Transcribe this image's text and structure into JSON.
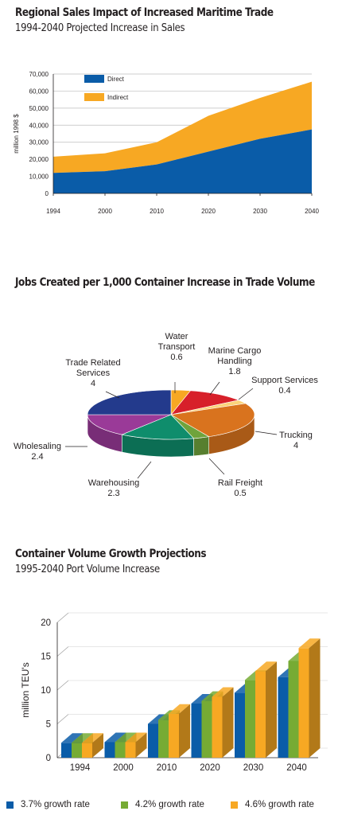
{
  "sections": [
    {
      "title": "Regional Sales Impact of Increased Maritime Trade",
      "subtitle": "1994-2040 Projected Increase in Sales"
    },
    {
      "title": "Jobs Created per 1,000 Container Increase in Trade Volume"
    },
    {
      "title": "Container Volume Growth Projections",
      "subtitle": "1995-2040 Port Volume Increase"
    }
  ],
  "chart_data": [
    {
      "type": "area",
      "stacked": true,
      "categories": [
        "1994",
        "2000",
        "2010",
        "2020",
        "2030",
        "2040"
      ],
      "series": [
        {
          "name": "Direct",
          "values": [
            12000,
            13000,
            17000,
            24500,
            32000,
            37500
          ],
          "color": "#0a5ca8"
        },
        {
          "name": "Indirect",
          "values": [
            9500,
            10500,
            13000,
            21000,
            24000,
            28000
          ],
          "color": "#f7a823"
        }
      ],
      "ylabel": "million 1998 $",
      "yticks": [
        "0",
        "10,000",
        "20,000",
        "30,000",
        "40,000",
        "50,000",
        "60,000",
        "70,000"
      ],
      "ylim": [
        0,
        70000
      ],
      "grid": true,
      "legend": "top-left"
    },
    {
      "type": "pie",
      "slices": [
        {
          "label": "Water Transport",
          "value": 0.6,
          "color": "#f7a823"
        },
        {
          "label": "Marine Cargo Handling",
          "value": 1.8,
          "color": "#d7202a"
        },
        {
          "label": "Support Services",
          "value": 0.4,
          "color": "#fbd37a"
        },
        {
          "label": "Trucking",
          "value": 4,
          "color": "#d9731e"
        },
        {
          "label": "Rail Freight",
          "value": 0.5,
          "color": "#6fa33c"
        },
        {
          "label": "Warehousing",
          "value": 2.3,
          "color": "#0f8d6c"
        },
        {
          "label": "Wholesaling",
          "value": 2.4,
          "color": "#9a3a98"
        },
        {
          "label": "Trade Related Services",
          "value": 4,
          "color": "#233a8c"
        }
      ]
    },
    {
      "type": "bar",
      "categories": [
        "1994",
        "2000",
        "2010",
        "2020",
        "2030",
        "2040"
      ],
      "series": [
        {
          "name": "3.7% growth rate",
          "values": [
            2.2,
            2.3,
            5.0,
            8.0,
            9.6,
            11.9
          ],
          "color": "#0a5ca8"
        },
        {
          "name": "4.2% growth rate",
          "values": [
            2.2,
            2.3,
            5.6,
            8.4,
            11.5,
            14.3
          ],
          "color": "#76ab34"
        },
        {
          "name": "4.6% growth rate",
          "values": [
            2.2,
            2.3,
            6.5,
            9.0,
            12.8,
            16.2
          ],
          "color": "#f7a823"
        }
      ],
      "ylabel": "million TEU's",
      "yticks": [
        "0",
        "5",
        "10",
        "15",
        "20"
      ],
      "ylim": [
        0,
        20
      ],
      "legend": "bottom"
    }
  ]
}
